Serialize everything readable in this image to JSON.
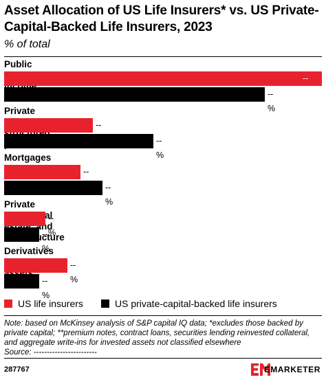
{
  "header": {
    "title": "Asset Allocation of US Life Insurers* vs. US Private-Capital-Backed Life Insurers, 2023",
    "subtitle": "% of total"
  },
  "chart_data": {
    "type": "bar",
    "orientation": "horizontal",
    "categories": [
      "Public fixed income",
      "Private credit and structured products",
      "Mortgages",
      "Private equity, real estate, and infrastructure",
      "Derivatives and other assets**"
    ],
    "series": [
      {
        "name": "US life insurers",
        "color": "#e8222d",
        "values": [
          100,
          28,
          24,
          13,
          20
        ],
        "labels": [
          "--%",
          "--%",
          "--%",
          "--%",
          "--%"
        ]
      },
      {
        "name": "US private-capital-backed life insurers",
        "color": "#000000",
        "values": [
          82,
          47,
          31,
          11,
          11
        ],
        "labels": [
          "--%",
          "--%",
          "--%",
          "--%",
          "--%"
        ]
      }
    ],
    "xlim": [
      0,
      100
    ],
    "grid": false,
    "legend_position": "bottom-left"
  },
  "legend": {
    "items": [
      {
        "label": "US life insurers",
        "color": "#e8222d"
      },
      {
        "label": "US private-capital-backed life insurers",
        "color": "#000000"
      }
    ]
  },
  "note": {
    "text": "Note: based on McKinsey analysis of S&P capital IQ data; *excludes those backed by private capital; **premium notes, contract loans, securities lending reinvested collateral, and aggregate write-ins for invested assets not classified elsewhere",
    "source": "Source: ------------------------"
  },
  "footer": {
    "chart_id": "287767",
    "brand": "EMARKETER",
    "brand_color": "#e8222d"
  }
}
